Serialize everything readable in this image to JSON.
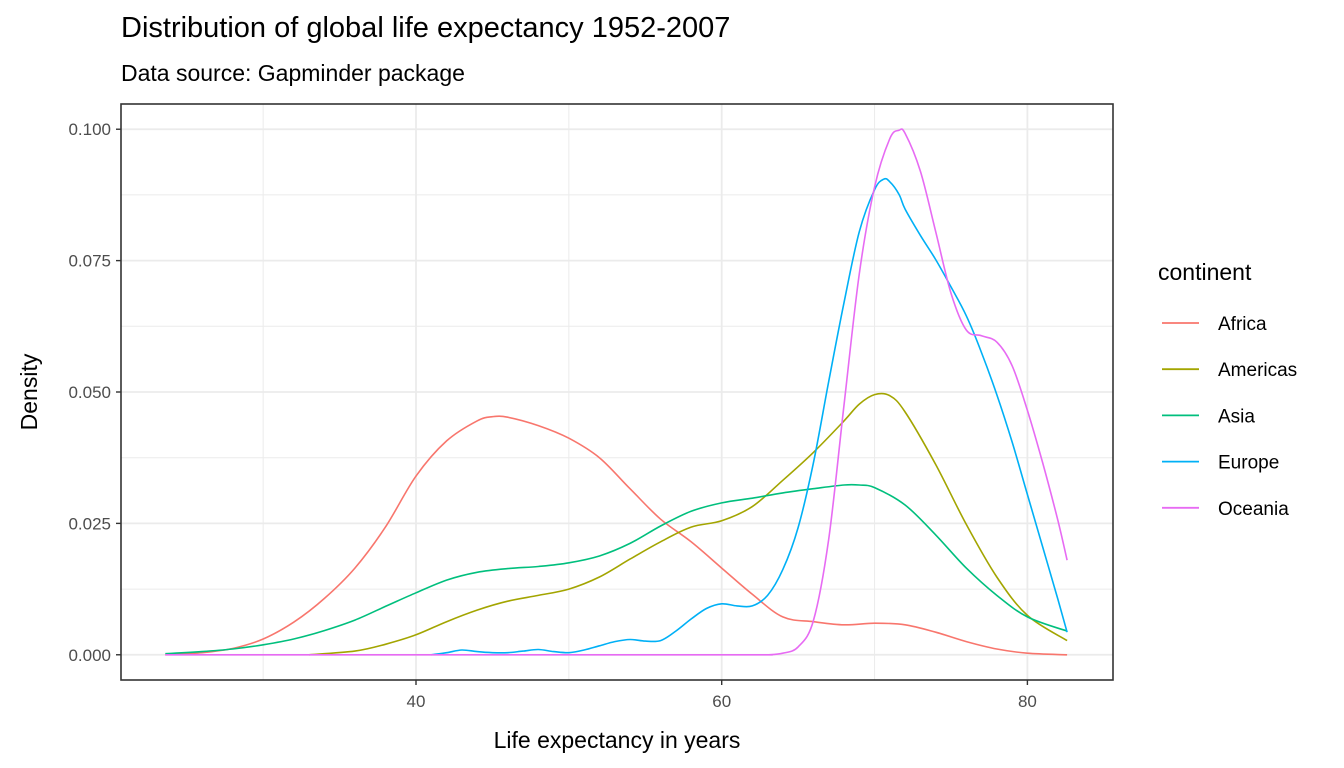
{
  "chart_data": {
    "type": "line",
    "title": "Distribution of global life expectancy 1952-2007",
    "subtitle": "Data source: Gapminder package",
    "xlabel": "Life expectancy in years",
    "ylabel": "Density",
    "xlim": [
      20.7,
      85.6
    ],
    "ylim": [
      -0.0048,
      0.1048
    ],
    "x_ticks": [
      40,
      60,
      80
    ],
    "x_tick_labels": [
      "40",
      "60",
      "80"
    ],
    "x_minor_ticks": [
      30,
      50,
      70
    ],
    "y_ticks": [
      0.0,
      0.025,
      0.05,
      0.075,
      0.1
    ],
    "y_tick_labels": [
      "0.000",
      "0.025",
      "0.050",
      "0.075",
      "0.100"
    ],
    "y_minor_ticks": [
      0.0125,
      0.0375,
      0.0625,
      0.0875
    ],
    "grid": true,
    "legend": {
      "title": "continent",
      "position": "right"
    },
    "series": [
      {
        "name": "Africa",
        "color": "#F8766D",
        "x": [
          23.6,
          26,
          28,
          30,
          32,
          34,
          36,
          38,
          40,
          42,
          44,
          45,
          46,
          48,
          50,
          52,
          54,
          56,
          58,
          60,
          62,
          64,
          66,
          68,
          70,
          72,
          74,
          76,
          78,
          80,
          82.6
        ],
        "y": [
          0.0,
          0.0004,
          0.0012,
          0.003,
          0.0062,
          0.0107,
          0.0165,
          0.0243,
          0.034,
          0.0407,
          0.0445,
          0.0453,
          0.0452,
          0.0436,
          0.0412,
          0.0375,
          0.0316,
          0.0258,
          0.0215,
          0.0165,
          0.0115,
          0.0072,
          0.0063,
          0.0057,
          0.006,
          0.0057,
          0.0043,
          0.0025,
          0.0011,
          0.0003,
          0.0
        ]
      },
      {
        "name": "Americas",
        "color": "#A3A500",
        "x": [
          33,
          36,
          38,
          40,
          42,
          44,
          46,
          48,
          50,
          52,
          54,
          56,
          58,
          60,
          62,
          64,
          66,
          68,
          69,
          70,
          71,
          72,
          74,
          76,
          78,
          80,
          82.6
        ],
        "y": [
          0.0,
          0.0007,
          0.002,
          0.0038,
          0.0063,
          0.0085,
          0.0102,
          0.0113,
          0.0125,
          0.0148,
          0.0182,
          0.0215,
          0.0243,
          0.0255,
          0.0282,
          0.0332,
          0.0385,
          0.0445,
          0.0477,
          0.0495,
          0.0493,
          0.0462,
          0.0362,
          0.0248,
          0.0148,
          0.0075,
          0.0027
        ]
      },
      {
        "name": "Asia",
        "color": "#00BF7D",
        "x": [
          23.6,
          26,
          28,
          30,
          32,
          34,
          36,
          38,
          40,
          42,
          44,
          46,
          48,
          50,
          52,
          54,
          56,
          58,
          60,
          62,
          64,
          66,
          68,
          69,
          70,
          72,
          74,
          76,
          78,
          80,
          82.6
        ],
        "y": [
          0.0002,
          0.0006,
          0.0011,
          0.0019,
          0.003,
          0.0046,
          0.0066,
          0.0092,
          0.0118,
          0.0142,
          0.0157,
          0.0164,
          0.0168,
          0.0175,
          0.0188,
          0.0212,
          0.0245,
          0.0273,
          0.0289,
          0.0298,
          0.0308,
          0.0316,
          0.0323,
          0.0323,
          0.0318,
          0.0285,
          0.0228,
          0.0165,
          0.0113,
          0.0072,
          0.0045
        ]
      },
      {
        "name": "Europe",
        "color": "#00B0F6",
        "x": [
          41,
          42,
          43,
          44,
          45,
          46,
          47,
          48,
          49,
          50,
          51,
          52,
          53,
          54,
          55,
          56,
          57,
          58,
          59,
          60,
          61,
          62,
          63,
          64,
          65,
          66,
          67,
          68,
          69,
          70,
          70.6,
          71,
          71.6,
          72,
          73,
          74,
          75,
          76,
          77,
          78,
          79,
          80,
          81,
          82,
          82.6
        ],
        "y": [
          0.0,
          0.0004,
          0.0009,
          0.0006,
          0.0004,
          0.0004,
          0.0007,
          0.001,
          0.0006,
          0.0004,
          0.0009,
          0.0017,
          0.0025,
          0.0029,
          0.0026,
          0.0027,
          0.0045,
          0.0068,
          0.0088,
          0.0097,
          0.0093,
          0.0093,
          0.0113,
          0.0162,
          0.0242,
          0.0365,
          0.052,
          0.067,
          0.0805,
          0.0885,
          0.0905,
          0.09,
          0.0876,
          0.0848,
          0.0798,
          0.0752,
          0.07,
          0.0645,
          0.0575,
          0.0495,
          0.0405,
          0.0305,
          0.0205,
          0.0105,
          0.0043
        ]
      },
      {
        "name": "Oceania",
        "color": "#E76BF3",
        "x": [
          23.6,
          60,
          62,
          63,
          64,
          65,
          66,
          67,
          68,
          69,
          70,
          71,
          71.6,
          72,
          73,
          74,
          75,
          76,
          77,
          78,
          79,
          80,
          81,
          82,
          82.6
        ],
        "y": [
          0.0,
          0.0,
          0.0,
          0.0,
          0.0003,
          0.0015,
          0.0065,
          0.022,
          0.0475,
          0.0725,
          0.089,
          0.0982,
          0.0998,
          0.0992,
          0.092,
          0.0805,
          0.0688,
          0.0618,
          0.0607,
          0.0595,
          0.055,
          0.0465,
          0.0365,
          0.0255,
          0.018
        ]
      }
    ]
  }
}
